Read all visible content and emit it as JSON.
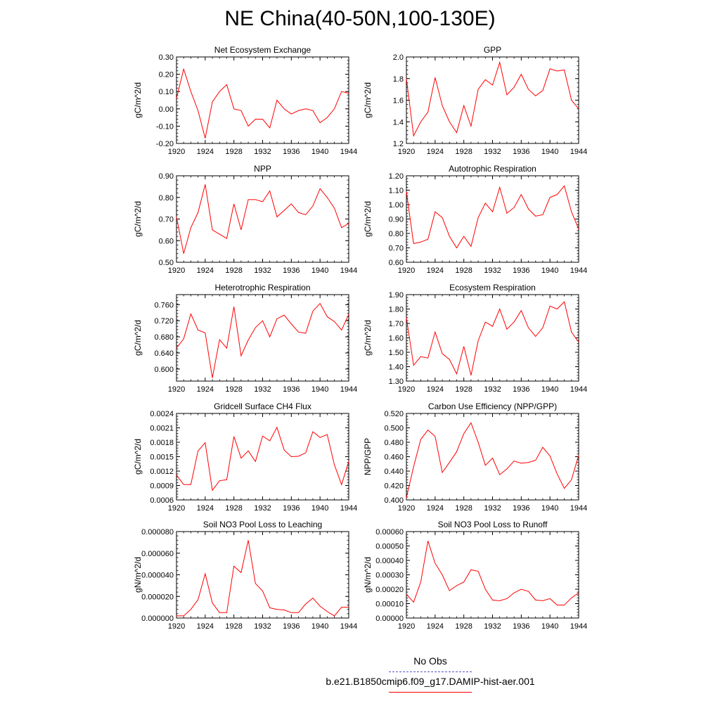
{
  "title": "NE China(40-50N,100-130E)",
  "colors": {
    "series": "#ff0000",
    "obs": "#5555cc",
    "axis": "#000000"
  },
  "legend": {
    "obs_label": "No Obs",
    "model_label": "b.e21.B1850cmip6.f09_g17.DAMIP-hist-aer.001"
  },
  "x_ticks": [
    "1920",
    "1924",
    "1928",
    "1932",
    "1936",
    "1940",
    "1944"
  ],
  "chart_data": [
    {
      "type": "line",
      "title": "Net Ecosystem Exchange",
      "ylabel": "gC/m^2/d",
      "xlim": [
        1920,
        1944
      ],
      "ylim": [
        -0.2,
        0.3
      ],
      "yticks": [
        "0.30",
        "0.20",
        "0.10",
        "0.00",
        "-0.10",
        "-0.20"
      ],
      "ytick_values": [
        0.3,
        0.2,
        0.1,
        0.0,
        -0.1,
        -0.2
      ],
      "x": [
        1920,
        1921,
        1922,
        1923,
        1924,
        1925,
        1926,
        1927,
        1928,
        1929,
        1930,
        1931,
        1932,
        1933,
        1934,
        1935,
        1936,
        1937,
        1938,
        1939,
        1940,
        1941,
        1942,
        1943,
        1944
      ],
      "values": [
        0.06,
        0.23,
        0.1,
        -0.01,
        -0.17,
        0.04,
        0.1,
        0.14,
        0.0,
        -0.01,
        -0.1,
        -0.06,
        -0.06,
        -0.11,
        0.05,
        0.0,
        -0.03,
        -0.01,
        0.0,
        -0.01,
        -0.08,
        -0.05,
        0.0,
        0.1,
        0.09
      ]
    },
    {
      "type": "line",
      "title": "GPP",
      "ylabel": "gC/m^2/d",
      "xlim": [
        1920,
        1944
      ],
      "ylim": [
        1.2,
        2.0
      ],
      "yticks": [
        "2.0",
        "1.8",
        "1.6",
        "1.4",
        "1.2"
      ],
      "ytick_values": [
        2.0,
        1.8,
        1.6,
        1.4,
        1.2
      ],
      "x": [
        1920,
        1921,
        1922,
        1923,
        1924,
        1925,
        1926,
        1927,
        1928,
        1929,
        1930,
        1931,
        1932,
        1933,
        1934,
        1935,
        1936,
        1937,
        1938,
        1939,
        1940,
        1941,
        1942,
        1943,
        1944
      ],
      "values": [
        1.8,
        1.27,
        1.4,
        1.49,
        1.81,
        1.55,
        1.4,
        1.3,
        1.55,
        1.36,
        1.7,
        1.79,
        1.74,
        1.95,
        1.65,
        1.72,
        1.84,
        1.7,
        1.64,
        1.69,
        1.89,
        1.87,
        1.88,
        1.6,
        1.52
      ]
    },
    {
      "type": "line",
      "title": "NPP",
      "ylabel": "gC/m^2/d",
      "xlim": [
        1920,
        1944
      ],
      "ylim": [
        0.5,
        0.9
      ],
      "yticks": [
        "0.90",
        "0.80",
        "0.70",
        "0.60",
        "0.50"
      ],
      "ytick_values": [
        0.9,
        0.8,
        0.7,
        0.6,
        0.5
      ],
      "x": [
        1920,
        1921,
        1922,
        1923,
        1924,
        1925,
        1926,
        1927,
        1928,
        1929,
        1930,
        1931,
        1932,
        1933,
        1934,
        1935,
        1936,
        1937,
        1938,
        1939,
        1940,
        1941,
        1942,
        1943,
        1944
      ],
      "values": [
        0.71,
        0.54,
        0.66,
        0.73,
        0.86,
        0.65,
        0.63,
        0.61,
        0.77,
        0.65,
        0.79,
        0.79,
        0.78,
        0.83,
        0.71,
        0.74,
        0.77,
        0.73,
        0.72,
        0.76,
        0.84,
        0.8,
        0.75,
        0.66,
        0.68
      ]
    },
    {
      "type": "line",
      "title": "Autotrophic Respiration",
      "ylabel": "gC/m^2/d",
      "xlim": [
        1920,
        1944
      ],
      "ylim": [
        0.6,
        1.2
      ],
      "yticks": [
        "1.20",
        "1.10",
        "1.00",
        "0.90",
        "0.80",
        "0.70",
        "0.60"
      ],
      "ytick_values": [
        1.2,
        1.1,
        1.0,
        0.9,
        0.8,
        0.7,
        0.6
      ],
      "x": [
        1920,
        1921,
        1922,
        1923,
        1924,
        1925,
        1926,
        1927,
        1928,
        1929,
        1930,
        1931,
        1932,
        1933,
        1934,
        1935,
        1936,
        1937,
        1938,
        1939,
        1940,
        1941,
        1942,
        1943,
        1944
      ],
      "values": [
        1.09,
        0.73,
        0.74,
        0.76,
        0.95,
        0.91,
        0.78,
        0.7,
        0.78,
        0.71,
        0.91,
        1.01,
        0.95,
        1.12,
        0.94,
        0.98,
        1.07,
        0.97,
        0.92,
        0.93,
        1.05,
        1.07,
        1.13,
        0.95,
        0.83
      ]
    },
    {
      "type": "line",
      "title": "Heterotrophic Respiration",
      "ylabel": "gC/m^2/d",
      "xlim": [
        1920,
        1944
      ],
      "ylim": [
        0.57,
        0.785
      ],
      "yticks": [
        "0.760",
        "0.720",
        "0.680",
        "0.640",
        "0.600"
      ],
      "ytick_values": [
        0.76,
        0.72,
        0.68,
        0.64,
        0.6
      ],
      "x": [
        1920,
        1921,
        1922,
        1923,
        1924,
        1925,
        1926,
        1927,
        1928,
        1929,
        1930,
        1931,
        1932,
        1933,
        1934,
        1935,
        1936,
        1937,
        1938,
        1939,
        1940,
        1941,
        1942,
        1943,
        1944
      ],
      "values": [
        0.652,
        0.675,
        0.737,
        0.697,
        0.69,
        0.578,
        0.673,
        0.652,
        0.755,
        0.633,
        0.672,
        0.703,
        0.72,
        0.68,
        0.725,
        0.734,
        0.712,
        0.692,
        0.689,
        0.744,
        0.763,
        0.73,
        0.718,
        0.697,
        0.736
      ]
    },
    {
      "type": "line",
      "title": "Ecosystem Respiration",
      "ylabel": "gC/m^2/d",
      "xlim": [
        1920,
        1944
      ],
      "ylim": [
        1.3,
        1.9
      ],
      "yticks": [
        "1.90",
        "1.80",
        "1.70",
        "1.60",
        "1.50",
        "1.40",
        "1.30"
      ],
      "ytick_values": [
        1.9,
        1.8,
        1.7,
        1.6,
        1.5,
        1.4,
        1.3
      ],
      "x": [
        1920,
        1921,
        1922,
        1923,
        1924,
        1925,
        1926,
        1927,
        1928,
        1929,
        1930,
        1931,
        1932,
        1933,
        1934,
        1935,
        1936,
        1937,
        1938,
        1939,
        1940,
        1941,
        1942,
        1943,
        1944
      ],
      "values": [
        1.74,
        1.41,
        1.47,
        1.46,
        1.64,
        1.49,
        1.45,
        1.35,
        1.54,
        1.34,
        1.58,
        1.71,
        1.68,
        1.8,
        1.66,
        1.71,
        1.79,
        1.67,
        1.61,
        1.67,
        1.82,
        1.8,
        1.85,
        1.64,
        1.57
      ]
    },
    {
      "type": "line",
      "title": "Gridcell Surface CH4 Flux",
      "ylabel": "gC/m^2/d",
      "xlim": [
        1920,
        1944
      ],
      "ylim": [
        0.0006,
        0.0024
      ],
      "yticks": [
        "0.0024",
        "0.0021",
        "0.0018",
        "0.0015",
        "0.0012",
        "0.0009",
        "0.0006"
      ],
      "ytick_values": [
        0.0024,
        0.0021,
        0.0018,
        0.0015,
        0.0012,
        0.0009,
        0.0006
      ],
      "x": [
        1920,
        1921,
        1922,
        1923,
        1924,
        1925,
        1926,
        1927,
        1928,
        1929,
        1930,
        1931,
        1932,
        1933,
        1934,
        1935,
        1936,
        1937,
        1938,
        1939,
        1940,
        1941,
        1942,
        1943,
        1944
      ],
      "values": [
        0.00112,
        0.00092,
        0.00092,
        0.00162,
        0.00179,
        0.0008,
        0.001,
        0.00102,
        0.00192,
        0.00147,
        0.00162,
        0.0014,
        0.00193,
        0.00183,
        0.00211,
        0.00164,
        0.0015,
        0.00151,
        0.00158,
        0.00202,
        0.0019,
        0.00196,
        0.00133,
        0.00092,
        0.0014
      ]
    },
    {
      "type": "line",
      "title": "Carbon Use Efficiency (NPP/GPP)",
      "ylabel": "NPP/GPP",
      "xlim": [
        1920,
        1944
      ],
      "ylim": [
        0.4,
        0.52
      ],
      "yticks": [
        "0.520",
        "0.500",
        "0.480",
        "0.460",
        "0.440",
        "0.420",
        "0.400"
      ],
      "ytick_values": [
        0.52,
        0.5,
        0.48,
        0.46,
        0.44,
        0.42,
        0.4
      ],
      "x": [
        1920,
        1921,
        1922,
        1923,
        1924,
        1925,
        1926,
        1927,
        1928,
        1929,
        1930,
        1931,
        1932,
        1933,
        1934,
        1935,
        1936,
        1937,
        1938,
        1939,
        1940,
        1941,
        1942,
        1943,
        1944
      ],
      "values": [
        0.403,
        0.446,
        0.484,
        0.497,
        0.488,
        0.438,
        0.452,
        0.467,
        0.492,
        0.507,
        0.48,
        0.448,
        0.458,
        0.435,
        0.443,
        0.454,
        0.451,
        0.452,
        0.455,
        0.473,
        0.461,
        0.436,
        0.416,
        0.428,
        0.462
      ]
    },
    {
      "type": "line",
      "title": "Soil NO3 Pool Loss to Leaching",
      "ylabel": "gN/m^2/d",
      "xlim": [
        1920,
        1944
      ],
      "ylim": [
        0.0,
        8e-05
      ],
      "yticks": [
        "0.000080",
        "0.000060",
        "0.000040",
        "0.000020",
        "0.000000"
      ],
      "ytick_values": [
        8e-05,
        6e-05,
        4e-05,
        2e-05,
        0.0
      ],
      "x": [
        1920,
        1921,
        1922,
        1923,
        1924,
        1925,
        1926,
        1927,
        1928,
        1929,
        1930,
        1931,
        1932,
        1933,
        1934,
        1935,
        1936,
        1937,
        1938,
        1939,
        1940,
        1941,
        1942,
        1943,
        1944
      ],
      "values": [
        2e-06,
        2e-06,
        8e-06,
        1.7e-05,
        4.1e-05,
        1.4e-05,
        5e-06,
        5e-06,
        4.8e-05,
        4.2e-05,
        7.2e-05,
        3.2e-05,
        2.5e-05,
        9.5e-06,
        8e-06,
        7.5e-06,
        5e-06,
        5e-06,
        1.3e-05,
        1.85e-05,
        1.1e-05,
        6e-06,
        2e-06,
        1e-05,
        1e-05
      ]
    },
    {
      "type": "line",
      "title": "Soil NO3 Pool Loss to Runoff",
      "ylabel": "gN/m^2/d",
      "xlim": [
        1920,
        1944
      ],
      "ylim": [
        0.0,
        0.0006
      ],
      "yticks": [
        "0.00060",
        "0.00050",
        "0.00040",
        "0.00030",
        "0.00020",
        "0.00010",
        "0.00000"
      ],
      "ytick_values": [
        0.0006,
        0.0005,
        0.0004,
        0.0003,
        0.0002,
        0.0001,
        0.0
      ],
      "x": [
        1920,
        1921,
        1922,
        1923,
        1924,
        1925,
        1926,
        1927,
        1928,
        1929,
        1930,
        1931,
        1932,
        1933,
        1934,
        1935,
        1936,
        1937,
        1938,
        1939,
        1940,
        1941,
        1942,
        1943,
        1944
      ],
      "values": [
        0.000165,
        0.00011,
        0.00025,
        0.000535,
        0.00038,
        0.0003,
        0.00019,
        0.000225,
        0.00025,
        0.000335,
        0.000325,
        0.0002,
        0.000125,
        0.00012,
        0.000135,
        0.000175,
        0.0002,
        0.000185,
        0.000125,
        0.00012,
        0.000135,
        9e-05,
        9e-05,
        0.00014,
        0.000175
      ]
    }
  ]
}
